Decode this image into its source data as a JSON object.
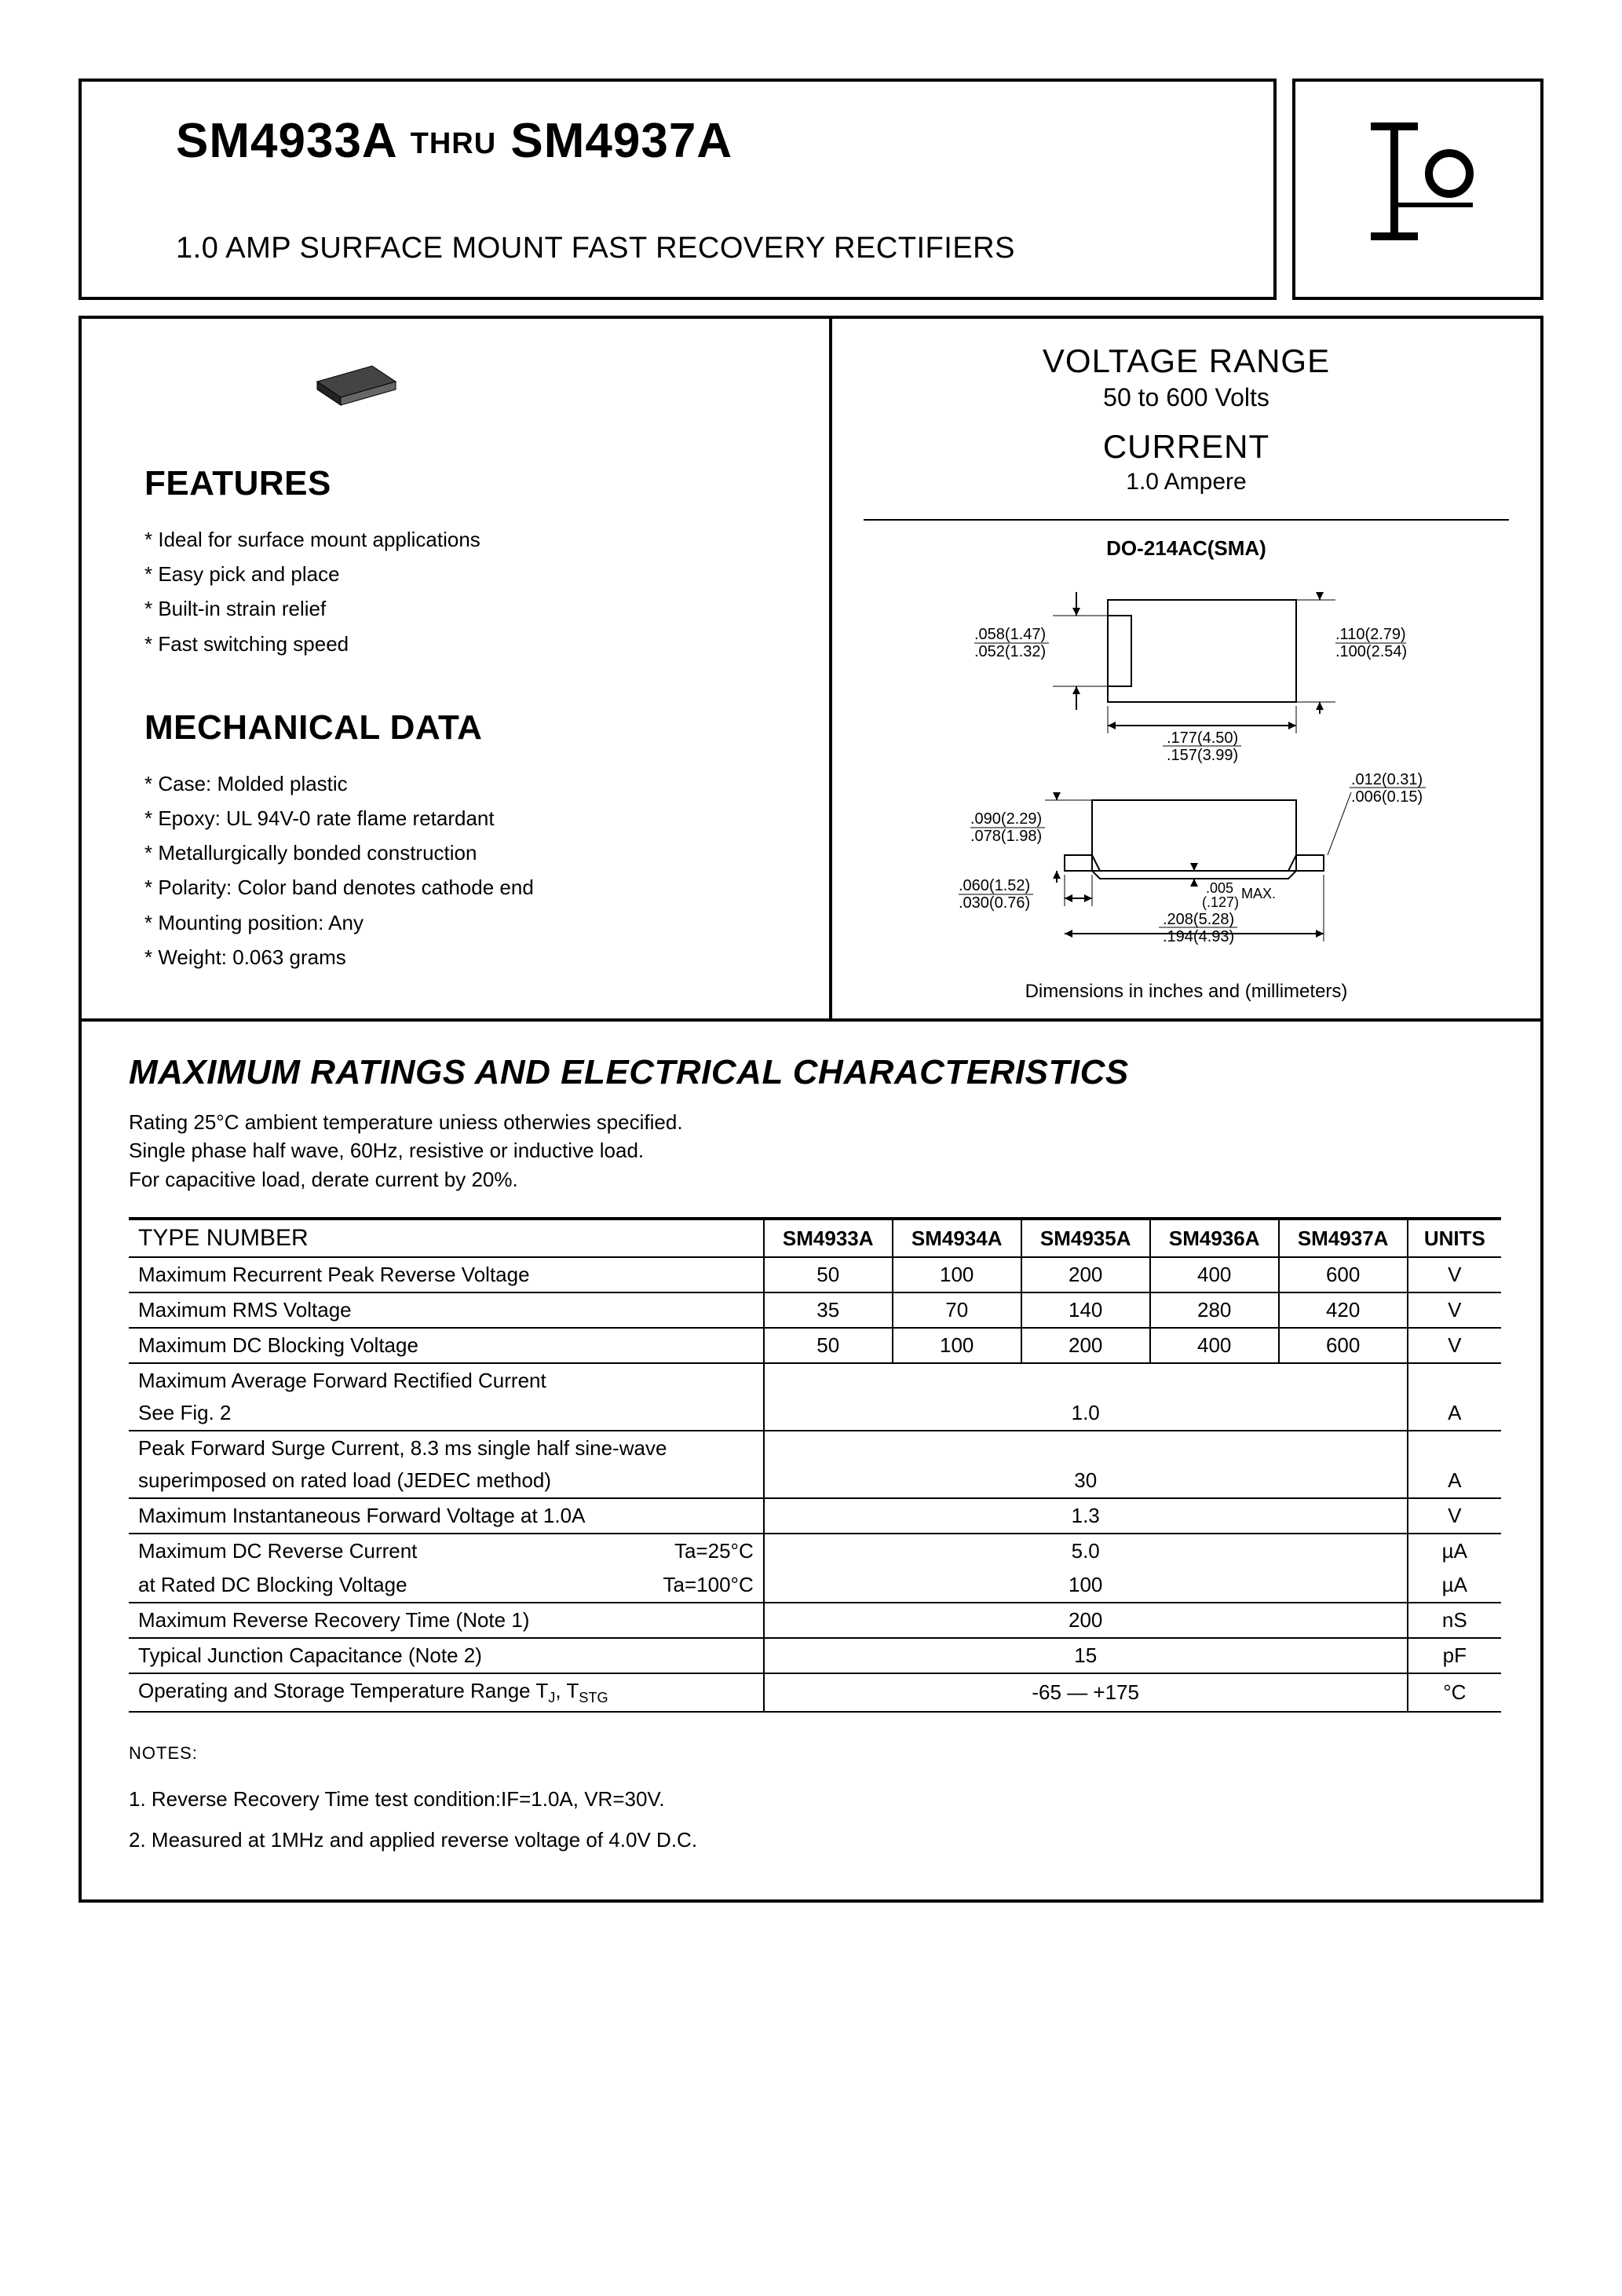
{
  "header": {
    "part_from": "SM4933A",
    "thru": "THRU",
    "part_to": "SM4937A",
    "subtitle": "1.0 AMP SURFACE MOUNT FAST RECOVERY RECTIFIERS",
    "logo_text": "O"
  },
  "features": {
    "title": "FEATURES",
    "items": [
      "Ideal for surface mount applications",
      "Easy pick and place",
      "Built-in strain relief",
      "Fast switching speed"
    ]
  },
  "mechanical": {
    "title": "MECHANICAL DATA",
    "items": [
      "Case: Molded plastic",
      "Epoxy: UL 94V-0 rate flame retardant",
      "Metallurgically bonded construction",
      "Polarity: Color band denotes cathode end",
      "Mounting position: Any",
      "Weight: 0.063 grams"
    ]
  },
  "specs": {
    "voltage_range_title": "VOLTAGE RANGE",
    "voltage_range": "50 to 600 Volts",
    "current_title": "CURRENT",
    "current": "1.0 Ampere",
    "package": "DO-214AC(SMA)",
    "dim_note": "Dimensions in inches and (millimeters)"
  },
  "package_dims": {
    "top_view": {
      "height_top": ".058(1.47)",
      "height_bot": ".052(1.32)",
      "right_top": ".110(2.79)",
      "right_bot": ".100(2.54)",
      "width_top": ".177(4.50)",
      "width_bot": ".157(3.99)"
    },
    "side_view": {
      "left_h_top": ".090(2.29)",
      "left_h_bot": ".078(1.98)",
      "lead_top": ".060(1.52)",
      "lead_bot": ".030(0.76)",
      "standoff_top": ".005",
      "standoff_bot": "(.127)",
      "standoff_suffix": "MAX.",
      "total_w_top": ".208(5.28)",
      "total_w_bot": ".194(4.93)",
      "right_top": ".012(0.31)",
      "right_bot": ".006(0.15)"
    }
  },
  "ratings": {
    "title": "MAXIMUM RATINGS AND ELECTRICAL CHARACTERISTICS",
    "note_line1": "Rating 25°C ambient temperature uniess otherwies specified.",
    "note_line2": "Single phase half wave, 60Hz, resistive or inductive load.",
    "note_line3": "For capacitive load, derate current by 20%.",
    "type_header": "TYPE NUMBER",
    "parts": [
      "SM4933A",
      "SM4934A",
      "SM4935A",
      "SM4936A",
      "SM4937A"
    ],
    "units_header": "UNITS",
    "rows": [
      {
        "label": "Maximum Recurrent Peak Reverse Voltage",
        "vals": [
          "50",
          "100",
          "200",
          "400",
          "600"
        ],
        "unit": "V"
      },
      {
        "label": "Maximum RMS Voltage",
        "vals": [
          "35",
          "70",
          "140",
          "280",
          "420"
        ],
        "unit": "V"
      },
      {
        "label": "Maximum DC Blocking Voltage",
        "vals": [
          "50",
          "100",
          "200",
          "400",
          "600"
        ],
        "unit": "V"
      }
    ],
    "span_rows": [
      {
        "label_main": "Maximum Average Forward Rectified Current",
        "label_sub": "See Fig. 2",
        "val": "1.0",
        "unit": "A"
      },
      {
        "label_main": "Peak Forward Surge Current, 8.3 ms single half sine-wave",
        "label_sub": "superimposed on rated load (JEDEC method)",
        "val": "30",
        "unit": "A"
      },
      {
        "label_main": "Maximum Instantaneous Forward Voltage at 1.0A",
        "val": "1.3",
        "unit": "V"
      }
    ],
    "dc_reverse": {
      "label1": "Maximum DC Reverse Current",
      "ta1": "Ta=25°C",
      "val1": "5.0",
      "unit1": "µA",
      "label2": "at Rated DC Blocking Voltage",
      "ta2": "Ta=100°C",
      "val2": "100",
      "unit2": "µA"
    },
    "more_rows": [
      {
        "label": "Maximum Reverse Recovery Time (Note 1)",
        "val": "200",
        "unit": "nS"
      },
      {
        "label": "Typical Junction Capacitance (Note 2)",
        "val": "15",
        "unit": "pF"
      },
      {
        "label": "Operating and Storage Temperature Range TJ, TSTG",
        "val": "-65 — +175",
        "unit": "°C"
      }
    ]
  },
  "notes": {
    "label": "NOTES:",
    "items": [
      "1. Reverse Recovery Time test condition:IF=1.0A, VR=30V.",
      "2. Measured at 1MHz and applied reverse voltage of 4.0V D.C."
    ]
  }
}
